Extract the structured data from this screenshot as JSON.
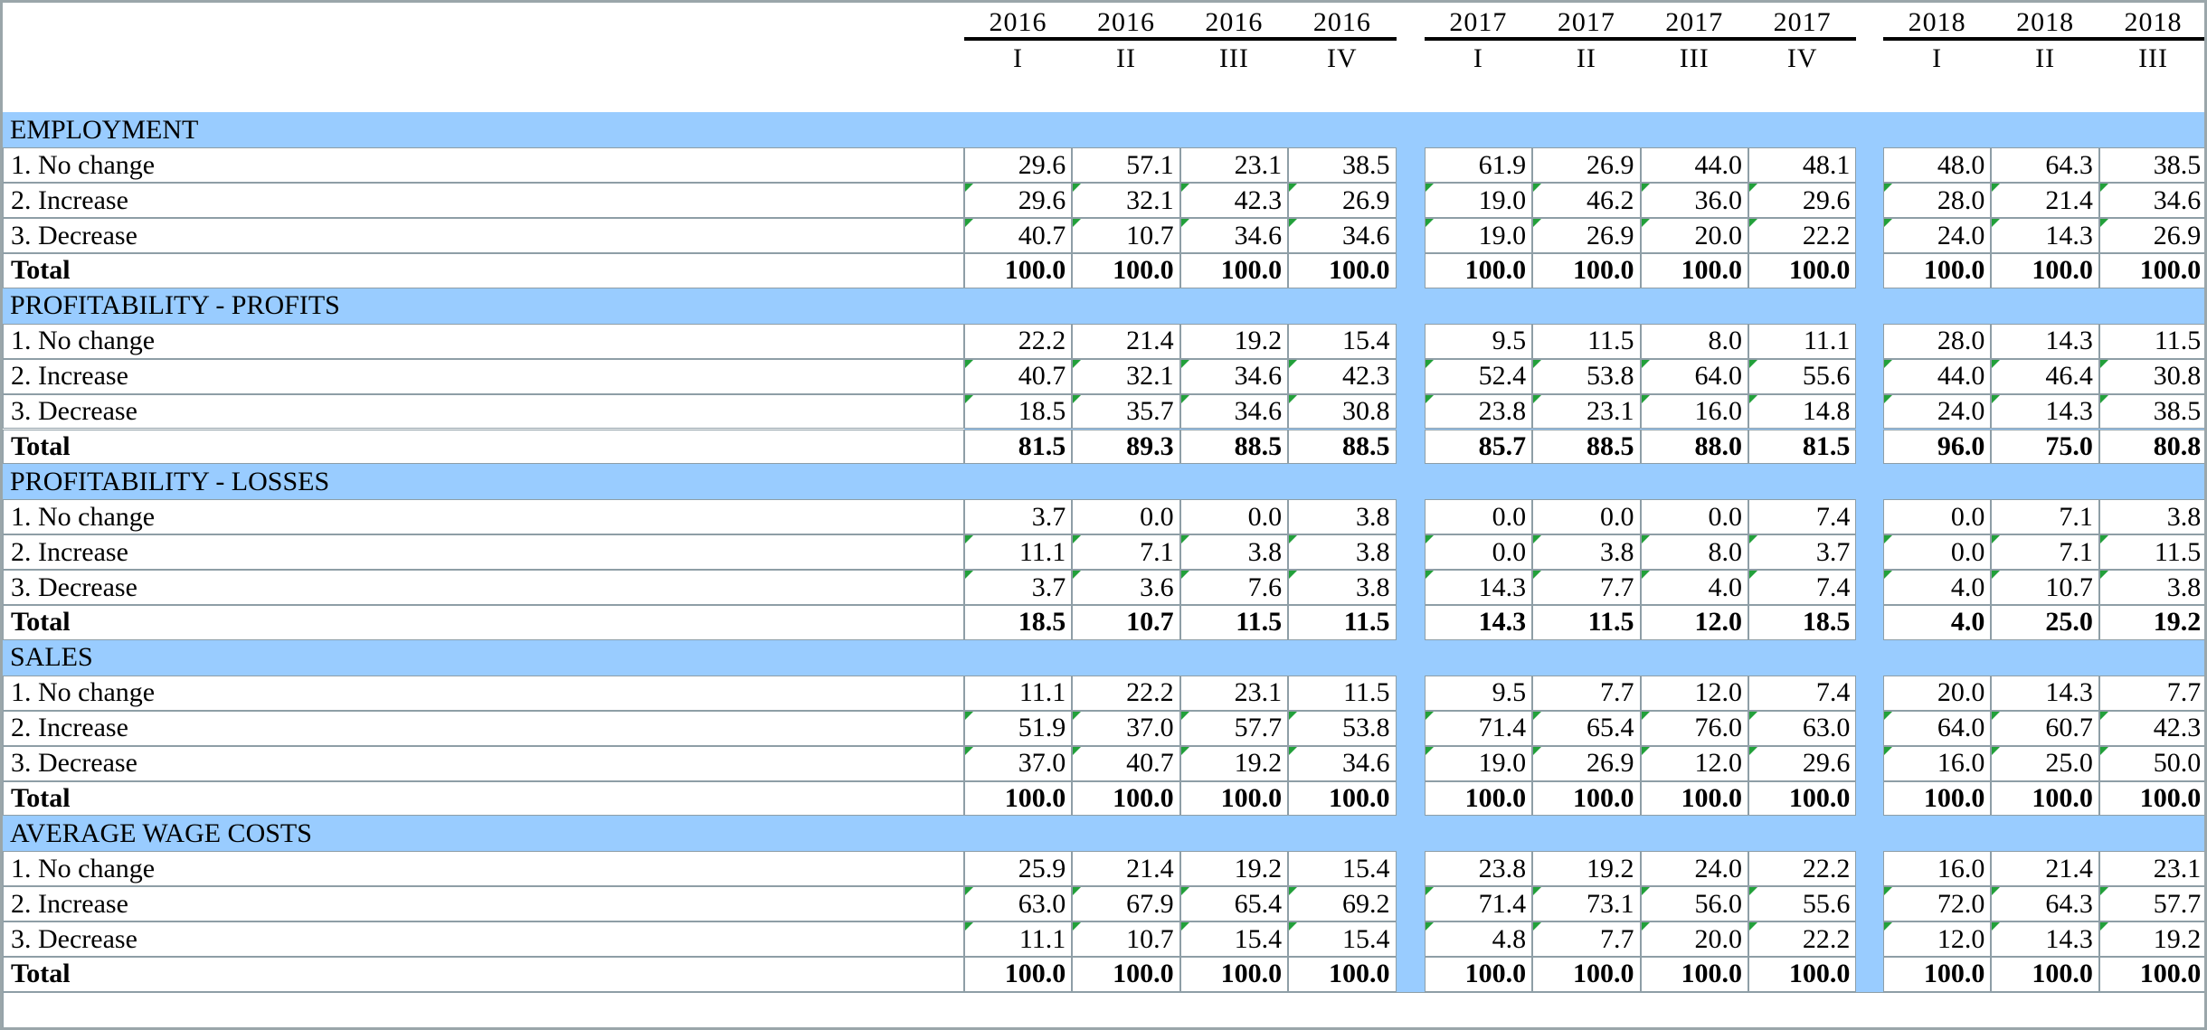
{
  "table": {
    "years": [
      "2016",
      "2016",
      "2016",
      "2016",
      "2017",
      "2017",
      "2017",
      "2017",
      "2018",
      "2018",
      "2018"
    ],
    "quarters": [
      "I",
      "II",
      "III",
      "IV",
      "I",
      "II",
      "III",
      "IV",
      "I",
      "II",
      "III"
    ],
    "sections": [
      {
        "title": "EMPLOYMENT",
        "rows": [
          {
            "label": "1. No change",
            "values": [
              "29.6",
              "57.1",
              "23.1",
              "38.5",
              "61.9",
              "26.9",
              "44.0",
              "48.1",
              "48.0",
              "64.3",
              "38.5"
            ]
          },
          {
            "label": "2. Increase",
            "values": [
              "29.6",
              "32.1",
              "42.3",
              "26.9",
              "19.0",
              "46.2",
              "36.0",
              "29.6",
              "28.0",
              "21.4",
              "34.6"
            ]
          },
          {
            "label": "3. Decrease",
            "values": [
              "40.7",
              "10.7",
              "34.6",
              "34.6",
              "19.0",
              "26.9",
              "20.0",
              "22.2",
              "24.0",
              "14.3",
              "26.9"
            ]
          },
          {
            "label": "Total",
            "values": [
              "100.0",
              "100.0",
              "100.0",
              "100.0",
              "100.0",
              "100.0",
              "100.0",
              "100.0",
              "100.0",
              "100.0",
              "100.0"
            ]
          }
        ]
      },
      {
        "title": "PROFITABILITY - PROFITS",
        "rows": [
          {
            "label": "1. No change",
            "values": [
              "22.2",
              "21.4",
              "19.2",
              "15.4",
              "9.5",
              "11.5",
              "8.0",
              "11.1",
              "28.0",
              "14.3",
              "11.5"
            ]
          },
          {
            "label": "2. Increase",
            "values": [
              "40.7",
              "32.1",
              "34.6",
              "42.3",
              "52.4",
              "53.8",
              "64.0",
              "55.6",
              "44.0",
              "46.4",
              "30.8"
            ]
          },
          {
            "label": "3. Decrease",
            "values": [
              "18.5",
              "35.7",
              "34.6",
              "30.8",
              "23.8",
              "23.1",
              "16.0",
              "14.8",
              "24.0",
              "14.3",
              "38.5"
            ]
          },
          {
            "label": "Total",
            "values": [
              "81.5",
              "89.3",
              "88.5",
              "88.5",
              "85.7",
              "88.5",
              "88.0",
              "81.5",
              "96.0",
              "75.0",
              "80.8"
            ]
          }
        ]
      },
      {
        "title": "PROFITABILITY - LOSSES",
        "rows": [
          {
            "label": "1. No change",
            "values": [
              "3.7",
              "0.0",
              "0.0",
              "3.8",
              "0.0",
              "0.0",
              "0.0",
              "7.4",
              "0.0",
              "7.1",
              "3.8"
            ]
          },
          {
            "label": "2. Increase",
            "values": [
              "11.1",
              "7.1",
              "3.8",
              "3.8",
              "0.0",
              "3.8",
              "8.0",
              "3.7",
              "0.0",
              "7.1",
              "11.5"
            ]
          },
          {
            "label": "3. Decrease",
            "values": [
              "3.7",
              "3.6",
              "7.6",
              "3.8",
              "14.3",
              "7.7",
              "4.0",
              "7.4",
              "4.0",
              "10.7",
              "3.8"
            ]
          },
          {
            "label": "Total",
            "values": [
              "18.5",
              "10.7",
              "11.5",
              "11.5",
              "14.3",
              "11.5",
              "12.0",
              "18.5",
              "4.0",
              "25.0",
              "19.2"
            ]
          }
        ]
      },
      {
        "title": "SALES",
        "rows": [
          {
            "label": "1. No change",
            "values": [
              "11.1",
              "22.2",
              "23.1",
              "11.5",
              "9.5",
              "7.7",
              "12.0",
              "7.4",
              "20.0",
              "14.3",
              "7.7"
            ]
          },
          {
            "label": "2. Increase",
            "values": [
              "51.9",
              "37.0",
              "57.7",
              "53.8",
              "71.4",
              "65.4",
              "76.0",
              "63.0",
              "64.0",
              "60.7",
              "42.3"
            ]
          },
          {
            "label": "3. Decrease",
            "values": [
              "37.0",
              "40.7",
              "19.2",
              "34.6",
              "19.0",
              "26.9",
              "12.0",
              "29.6",
              "16.0",
              "25.0",
              "50.0"
            ]
          },
          {
            "label": "Total",
            "values": [
              "100.0",
              "100.0",
              "100.0",
              "100.0",
              "100.0",
              "100.0",
              "100.0",
              "100.0",
              "100.0",
              "100.0",
              "100.0"
            ]
          }
        ]
      },
      {
        "title": "AVERAGE WAGE COSTS",
        "rows": [
          {
            "label": "1. No change",
            "values": [
              "25.9",
              "21.4",
              "19.2",
              "15.4",
              "23.8",
              "19.2",
              "24.0",
              "22.2",
              "16.0",
              "21.4",
              "23.1"
            ]
          },
          {
            "label": "2. Increase",
            "values": [
              "63.0",
              "67.9",
              "65.4",
              "69.2",
              "71.4",
              "73.1",
              "56.0",
              "55.6",
              "72.0",
              "64.3",
              "57.7"
            ]
          },
          {
            "label": "3. Decrease",
            "values": [
              "11.1",
              "10.7",
              "15.4",
              "15.4",
              "4.8",
              "7.7",
              "20.0",
              "22.2",
              "12.0",
              "14.3",
              "19.2"
            ]
          },
          {
            "label": "Total",
            "values": [
              "100.0",
              "100.0",
              "100.0",
              "100.0",
              "100.0",
              "100.0",
              "100.0",
              "100.0",
              "100.0",
              "100.0",
              "100.0"
            ]
          }
        ]
      }
    ]
  }
}
